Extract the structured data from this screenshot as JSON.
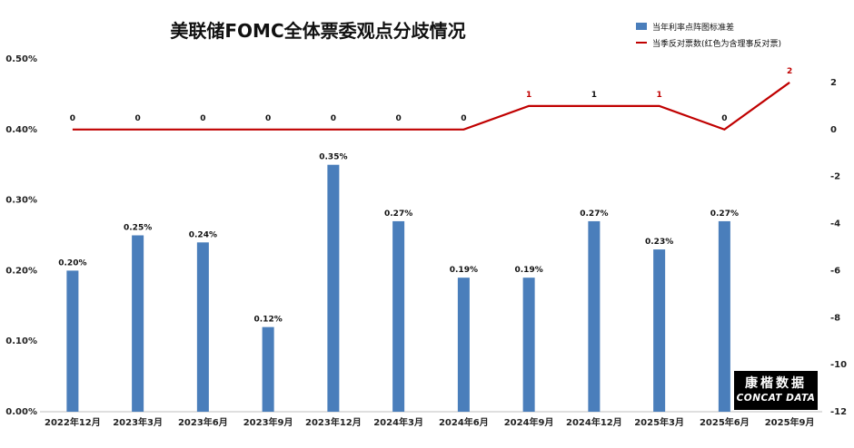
{
  "title": "美联储FOMC全体票委观点分歧情况",
  "legend": {
    "bar_label": "当年利率点阵图标准差",
    "line_label": "当季反对票数(红色为含理事反对票)"
  },
  "logo": {
    "cn": "康楷数据",
    "en": "CONCAT DATA"
  },
  "colors": {
    "bar": "#4a7ebb",
    "line": "#c00000",
    "label_black": "#111111",
    "label_red": "#c00000"
  },
  "chart_data": {
    "type": "bar+line",
    "categories": [
      "2022年12月",
      "2023年3月",
      "2023年6月",
      "2023年9月",
      "2023年12月",
      "2024年3月",
      "2024年6月",
      "2024年9月",
      "2024年12月",
      "2025年3月",
      "2025年6月",
      "2025年9月"
    ],
    "series": [
      {
        "name": "当年利率点阵图标准差",
        "type": "bar",
        "axis": "left",
        "values": [
          0.002,
          0.0025,
          0.0024,
          0.0012,
          0.0035,
          0.0027,
          0.0019,
          0.0019,
          0.0027,
          0.0023,
          0.0027,
          null
        ],
        "labels": [
          "0.20%",
          "0.25%",
          "0.24%",
          "0.12%",
          "0.35%",
          "0.27%",
          "0.19%",
          "0.19%",
          "0.27%",
          "0.23%",
          "0.27%",
          ""
        ]
      },
      {
        "name": "当季反对票数(红色为含理事反对票)",
        "type": "line",
        "axis": "right",
        "values": [
          0,
          0,
          0,
          0,
          0,
          0,
          0,
          1,
          1,
          1,
          0,
          2
        ],
        "label_red": [
          false,
          false,
          false,
          false,
          false,
          false,
          false,
          true,
          false,
          true,
          false,
          true
        ]
      }
    ],
    "left_axis": {
      "ylim": [
        0,
        0.005
      ],
      "ticks": [
        "0.00%",
        "0.10%",
        "0.20%",
        "0.30%",
        "0.40%",
        "0.50%"
      ]
    },
    "right_axis": {
      "ylim": [
        -12,
        3
      ],
      "ticks": [
        "-12",
        "-10",
        "-8",
        "-6",
        "-4",
        "-2",
        "0",
        "2"
      ]
    },
    "grid": false,
    "legend_position": "top-right"
  }
}
